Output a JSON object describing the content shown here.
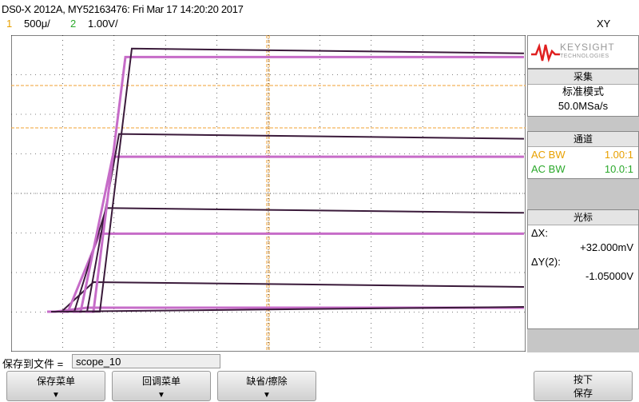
{
  "header": {
    "title": "DS0-X 2012A, MY52163476: Fri Mar 17 14:20:20 2017",
    "mode": "XY",
    "ch1": {
      "num": "1",
      "scale": "500μ/"
    },
    "ch2": {
      "num": "2",
      "scale": "1.00V/"
    }
  },
  "colors": {
    "trace": "#c66cc8",
    "trace_dark": "#3a1a3a",
    "cursor": "#f0a030",
    "grid": "#000000",
    "ch1": "#e8a000",
    "ch2": "#2aa82a"
  },
  "right_panel": {
    "logo_text": "KEYSIGHT",
    "logo_sub": "TECHNOLOGIES",
    "acquire": {
      "header": "采集",
      "mode": "标准模式",
      "rate": "50.0MSa/s"
    },
    "channels": {
      "header": "通道",
      "rows": [
        {
          "label": "AC BW",
          "value": "1.00:1"
        },
        {
          "label": "AC BW",
          "value": "10.0:1"
        }
      ]
    },
    "cursor": {
      "header": "光标",
      "dx_label": "ΔX:",
      "dx_value": "+32.000mV",
      "dy_label": "ΔY(2):",
      "dy_value": "-1.05000V"
    }
  },
  "footer": {
    "save_label": "保存到文件 =",
    "filename": "scope_10",
    "softkeys": [
      "保存菜单",
      "回调菜单",
      "缺省/擦除"
    ],
    "right_key": {
      "line1": "按下",
      "line2": "保存"
    }
  },
  "ground_marker": "2",
  "chart_data": {
    "type": "line",
    "title": "",
    "curve_levels": [
      0.07,
      0.16,
      0.33,
      0.42,
      0.6,
      0.68,
      0.95,
      0.98
    ],
    "knee_x": [
      0.06,
      0.07,
      0.08,
      0.09,
      0.1,
      0.11,
      0.12,
      0.13
    ]
  }
}
